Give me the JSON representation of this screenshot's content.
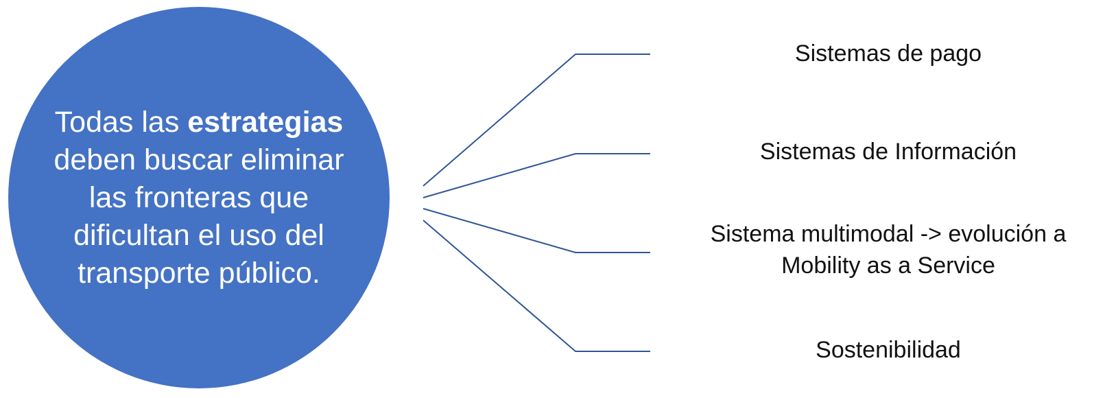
{
  "hub": {
    "text_before": "Todas las ",
    "text_bold": "estrategias",
    "text_after": " deben buscar eliminar las fronteras que dificultan el uso del transporte público."
  },
  "branches": [
    {
      "label": "Sistemas de pago"
    },
    {
      "label": "Sistemas de Información"
    },
    {
      "label": "Sistema multimodal -> evolución a Mobility as a Service"
    },
    {
      "label": "Sostenibilidad"
    }
  ],
  "colors": {
    "hub_fill": "#4472C4",
    "hub_text": "#ffffff",
    "connector": "#2F5597",
    "label_text": "#111111"
  }
}
